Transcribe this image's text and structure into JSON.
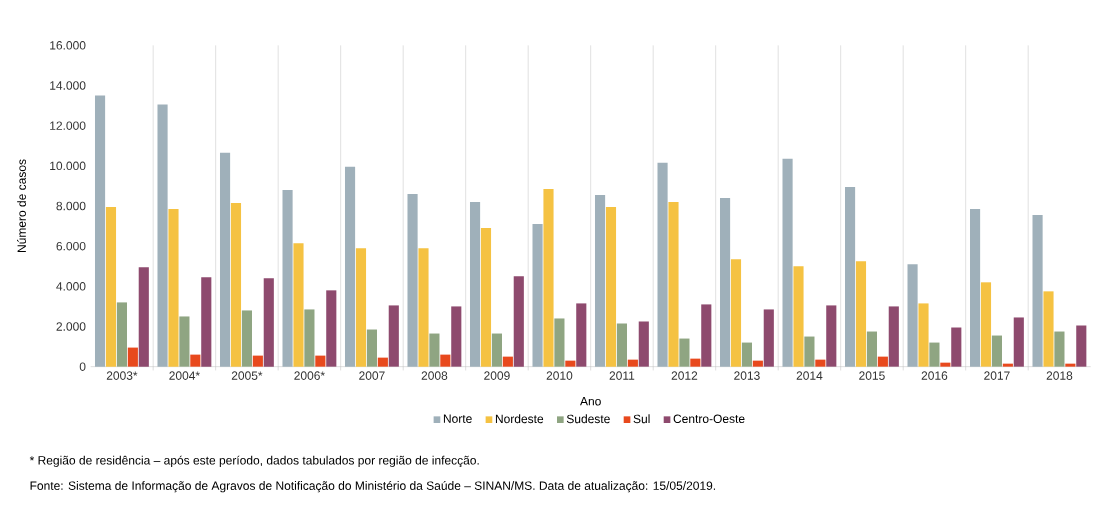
{
  "chart_data": {
    "type": "bar",
    "xlabel": "Ano",
    "ylabel": "Número de casos",
    "categories": [
      "2003*",
      "2004*",
      "2005*",
      "2006*",
      "2007",
      "2008",
      "2009",
      "2010",
      "2011",
      "2012",
      "2013",
      "2014",
      "2015",
      "2016",
      "2017",
      "2018"
    ],
    "series": [
      {
        "name": "Norte",
        "color": "#9fb0ba",
        "values": [
          13500,
          13050,
          10650,
          8800,
          9950,
          8600,
          8200,
          7100,
          8550,
          10150,
          8400,
          10350,
          8950,
          5100,
          7850,
          7550
        ]
      },
      {
        "name": "Nordeste",
        "color": "#f5c242",
        "values": [
          7950,
          7850,
          8150,
          6150,
          5900,
          5900,
          6900,
          8850,
          7950,
          8200,
          5350,
          5000,
          5250,
          3150,
          4200,
          3750
        ]
      },
      {
        "name": "Sudeste",
        "color": "#8fa582",
        "values": [
          3200,
          2500,
          2800,
          2850,
          1850,
          1650,
          1650,
          2400,
          2150,
          1400,
          1200,
          1500,
          1750,
          1200,
          1550,
          1750
        ]
      },
      {
        "name": "Sul",
        "color": "#e8491d",
        "values": [
          950,
          600,
          550,
          550,
          450,
          600,
          500,
          300,
          350,
          400,
          300,
          350,
          500,
          200,
          150,
          150
        ]
      },
      {
        "name": "Centro-Oeste",
        "color": "#8e4a6e",
        "values": [
          4950,
          4450,
          4400,
          3800,
          3050,
          3000,
          4500,
          3150,
          2250,
          3100,
          2850,
          3050,
          3000,
          1950,
          2450,
          2050
        ]
      }
    ],
    "ylim": [
      0,
      16000
    ],
    "yticks": [
      0,
      {
        "value": 2000,
        "label": "2.000"
      },
      {
        "value": 4000,
        "label": "4.000"
      },
      {
        "value": 6000,
        "label": "6.000"
      },
      {
        "value": 8000,
        "label": "8.000"
      },
      {
        "value": 10000,
        "label": "10.000"
      },
      {
        "value": 12000,
        "label": "12.000"
      },
      {
        "value": 14000,
        "label": "14.000"
      },
      {
        "value": 16000,
        "label": "16.000"
      }
    ],
    "grid": "x",
    "legend": "bottom",
    "annotations": [
      "* Região de residência – após este período, dados tabulados por região de infecção.",
      "Fonte: Sistema de Informação de Agravos de Notificação do Ministério da Saúde – SINAN/MS. Data de atualização: 15/05/2019."
    ]
  }
}
